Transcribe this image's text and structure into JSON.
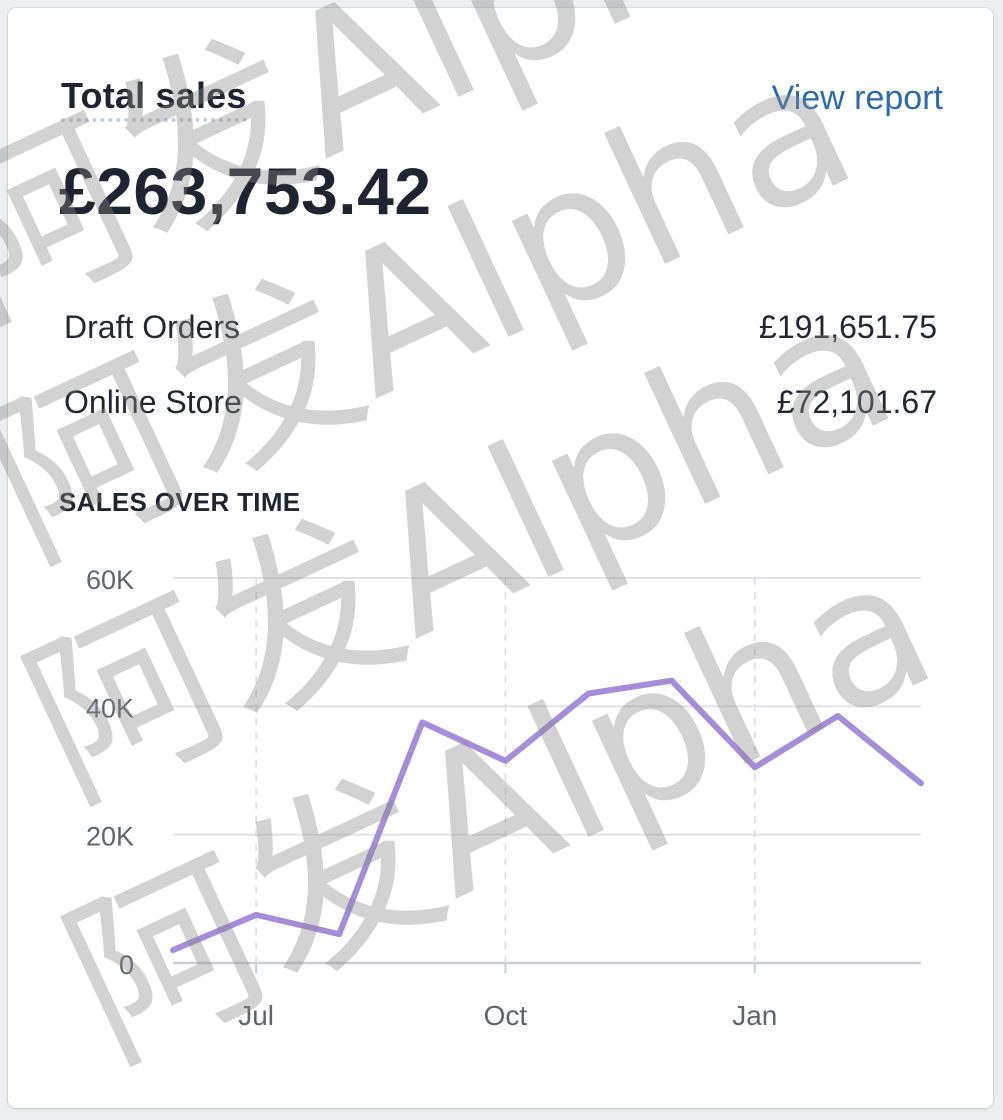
{
  "card": {
    "title": "Total sales",
    "view_report_label": "View report",
    "total_amount": "£263,753.42",
    "breakdown": [
      {
        "label": "Draft Orders",
        "value": "£191,651.75"
      },
      {
        "label": "Online Store",
        "value": "£72,101.67"
      }
    ],
    "section_heading": "SALES OVER TIME"
  },
  "colors": {
    "line": "#a58dd9",
    "link": "#2b6bac",
    "grid": "#dfe3e8",
    "tick_text": "#5c6670"
  },
  "chart_data": {
    "type": "line",
    "title": "SALES OVER TIME",
    "xlabel": "",
    "ylabel": "",
    "ylim": [
      0,
      60000
    ],
    "yticks": [
      0,
      20000,
      40000,
      60000
    ],
    "ytick_labels": [
      "0",
      "20K",
      "40K",
      "60K"
    ],
    "xtick_labels": [
      "Jul",
      "Oct",
      "Jan"
    ],
    "xtick_index": [
      1,
      4,
      7
    ],
    "grid": true,
    "series": [
      {
        "values": [
          2000,
          7500,
          4500,
          37500,
          31500,
          42000,
          44000,
          30500,
          38500,
          28000
        ]
      }
    ]
  },
  "watermark": {
    "text": "阿发Alpha"
  }
}
